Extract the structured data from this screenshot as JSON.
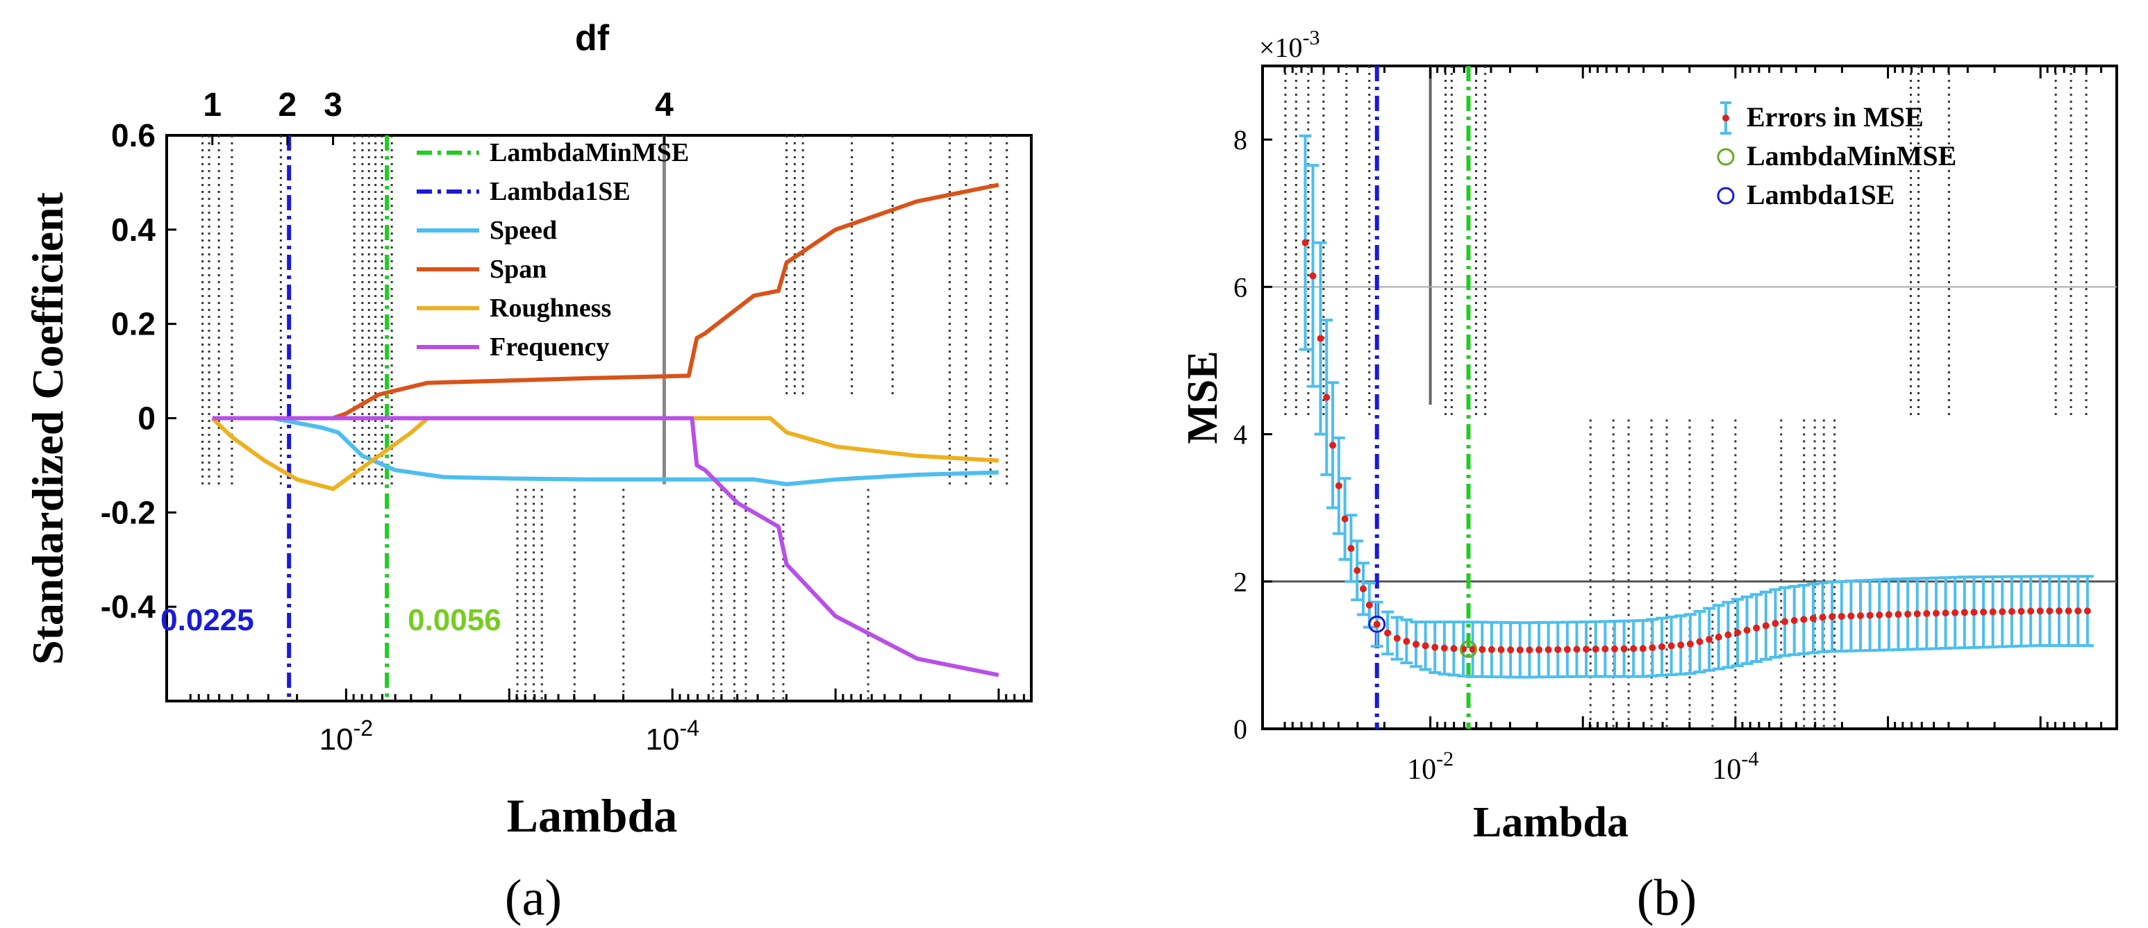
{
  "chart_data": [
    {
      "panel_label": "(a)",
      "type": "line",
      "title": "df",
      "xlabel": "Lambda",
      "ylabel": "Standardized Coefficient",
      "x_scale": "log-reversed",
      "xlim_log10": [
        -0.9,
        -6.2
      ],
      "ylim": [
        -0.6,
        0.6
      ],
      "xticks": [
        {
          "label": "10",
          "exp": "-2",
          "log": -2
        },
        {
          "label": "10",
          "exp": "-4",
          "log": -4
        }
      ],
      "yticks": [
        {
          "label": "0.6",
          "v": 0.6
        },
        {
          "label": "0.4",
          "v": 0.4
        },
        {
          "label": "0.2",
          "v": 0.2
        },
        {
          "label": "0",
          "v": 0
        },
        {
          "label": "-0.2",
          "v": -0.2
        },
        {
          "label": "-0.4",
          "v": -0.4
        }
      ],
      "df_ticks": [
        {
          "label": "1",
          "log": -1.18
        },
        {
          "label": "2",
          "log": -1.64
        },
        {
          "label": "3",
          "log": -1.92
        },
        {
          "label": "4",
          "log": -3.95
        }
      ],
      "vlines": [
        {
          "name": "LambdaMinMSE",
          "log": -2.25,
          "color": "#22cc22",
          "value_label": "0.0056",
          "label_color": "#77cc22"
        },
        {
          "name": "Lambda1SE",
          "log": -1.65,
          "color": "#1a1ad9",
          "value_label": "0.0225",
          "label_color": "#1a1ad9"
        }
      ],
      "series": [
        {
          "name": "Speed",
          "color": "#4dbeee",
          "x": [
            -1.18,
            -1.55,
            -1.7,
            -1.85,
            -1.95,
            -2.1,
            -2.3,
            -2.6,
            -3.0,
            -3.5,
            -4.0,
            -4.2,
            -4.5,
            -4.7,
            -5.0,
            -5.5,
            -6.0
          ],
          "y": [
            0,
            0,
            -0.01,
            -0.02,
            -0.03,
            -0.08,
            -0.11,
            -0.125,
            -0.128,
            -0.13,
            -0.13,
            -0.13,
            -0.13,
            -0.14,
            -0.13,
            -0.12,
            -0.115
          ]
        },
        {
          "name": "Span",
          "color": "#d95319",
          "x": [
            -1.18,
            -1.92,
            -2.0,
            -2.2,
            -2.5,
            -3.0,
            -3.5,
            -4.1,
            -4.15,
            -4.2,
            -4.5,
            -4.65,
            -4.7,
            -5.0,
            -5.5,
            -6.0
          ],
          "y": [
            0,
            0,
            0.01,
            0.05,
            0.075,
            0.08,
            0.085,
            0.09,
            0.17,
            0.18,
            0.26,
            0.27,
            0.33,
            0.4,
            0.46,
            0.495
          ]
        },
        {
          "name": "Roughness",
          "color": "#edb120",
          "x": [
            -1.18,
            -1.3,
            -1.5,
            -1.7,
            -1.92,
            -2.0,
            -2.2,
            -2.4,
            -2.5,
            -3.0,
            -4.1,
            -4.6,
            -4.7,
            -5.0,
            -5.5,
            -6.0
          ],
          "y": [
            0,
            -0.04,
            -0.09,
            -0.13,
            -0.15,
            -0.13,
            -0.08,
            -0.03,
            0,
            0,
            0,
            0,
            -0.03,
            -0.06,
            -0.08,
            -0.09
          ]
        },
        {
          "name": "Frequency",
          "color": "#b84fe8",
          "x": [
            -1.18,
            -4.0,
            -4.12,
            -4.15,
            -4.2,
            -4.4,
            -4.65,
            -4.7,
            -5.0,
            -5.5,
            -6.0
          ],
          "y": [
            0,
            0,
            0,
            -0.1,
            -0.11,
            -0.18,
            -0.23,
            -0.31,
            -0.42,
            -0.51,
            -0.545
          ]
        }
      ],
      "legend": [
        "LambdaMinMSE",
        "Lambda1SE",
        "Speed",
        "Span",
        "Roughness",
        "Frequency"
      ]
    },
    {
      "panel_label": "(b)",
      "type": "scatter",
      "xlabel": "Lambda",
      "ylabel": "MSE",
      "y_multiplier": "×10",
      "y_multiplier_exp": "-3",
      "x_scale": "log-reversed",
      "xlim_log10": [
        -0.9,
        -6.5
      ],
      "ylim": [
        0,
        9
      ],
      "xticks": [
        {
          "label": "10",
          "exp": "-2",
          "log": -2
        },
        {
          "label": "10",
          "exp": "-4",
          "log": -4
        }
      ],
      "yticks": [
        {
          "label": "0",
          "v": 0
        },
        {
          "label": "2",
          "v": 2
        },
        {
          "label": "4",
          "v": 4
        },
        {
          "label": "6",
          "v": 6
        },
        {
          "label": "8",
          "v": 8
        }
      ],
      "hlines": [
        2,
        6
      ],
      "vlines": [
        {
          "name": "Lambda1SE",
          "log": -1.65,
          "color": "#1a1ad9"
        },
        {
          "name": "LambdaMinMSE",
          "log": -2.25,
          "color": "#22cc22"
        }
      ],
      "mse_points": [
        {
          "log": -1.18,
          "mse": 6.6,
          "err": 1.45
        },
        {
          "log": -1.23,
          "mse": 6.15,
          "err": 1.5
        },
        {
          "log": -1.28,
          "mse": 5.3,
          "err": 1.3
        },
        {
          "log": -1.32,
          "mse": 4.5,
          "err": 1.05
        },
        {
          "log": -1.36,
          "mse": 3.85,
          "err": 0.85
        },
        {
          "log": -1.4,
          "mse": 3.3,
          "err": 0.65
        },
        {
          "log": -1.44,
          "mse": 2.85,
          "err": 0.55
        },
        {
          "log": -1.48,
          "mse": 2.45,
          "err": 0.45
        },
        {
          "log": -1.52,
          "mse": 2.15,
          "err": 0.4
        },
        {
          "log": -1.56,
          "mse": 1.9,
          "err": 0.35
        },
        {
          "log": -1.6,
          "mse": 1.68,
          "err": 0.3
        },
        {
          "log": -1.65,
          "mse": 1.42,
          "err": 0.3
        },
        {
          "log": -1.75,
          "mse": 1.25,
          "err": 0.28
        },
        {
          "log": -1.9,
          "mse": 1.15,
          "err": 0.3
        },
        {
          "log": -2.05,
          "mse": 1.1,
          "err": 0.35
        },
        {
          "log": -2.25,
          "mse": 1.08,
          "err": 0.37
        },
        {
          "log": -2.6,
          "mse": 1.07,
          "err": 0.37
        },
        {
          "log": -3.0,
          "mse": 1.08,
          "err": 0.37
        },
        {
          "log": -3.4,
          "mse": 1.09,
          "err": 0.38
        },
        {
          "log": -3.7,
          "mse": 1.15,
          "err": 0.4
        },
        {
          "log": -4.0,
          "mse": 1.3,
          "err": 0.45
        },
        {
          "log": -4.3,
          "mse": 1.45,
          "err": 0.46
        },
        {
          "log": -4.6,
          "mse": 1.52,
          "err": 0.47
        },
        {
          "log": -5.0,
          "mse": 1.55,
          "err": 0.48
        },
        {
          "log": -5.5,
          "mse": 1.58,
          "err": 0.48
        },
        {
          "log": -6.0,
          "mse": 1.6,
          "err": 0.47
        },
        {
          "log": -6.35,
          "mse": 1.6,
          "err": 0.47
        }
      ],
      "highlight": [
        {
          "name": "LambdaMinMSE",
          "log": -2.25,
          "mse": 1.08,
          "color": "#66aa22"
        },
        {
          "name": "Lambda1SE",
          "log": -1.65,
          "mse": 1.42,
          "color": "#1a1ad9"
        }
      ],
      "legend": [
        "Errors in MSE",
        "LambdaMinMSE",
        "Lambda1SE"
      ]
    }
  ],
  "colors": {
    "errorbar": "#4dbeee",
    "point": "#e0201b",
    "axis": "#000000",
    "dotted": "#333333"
  }
}
